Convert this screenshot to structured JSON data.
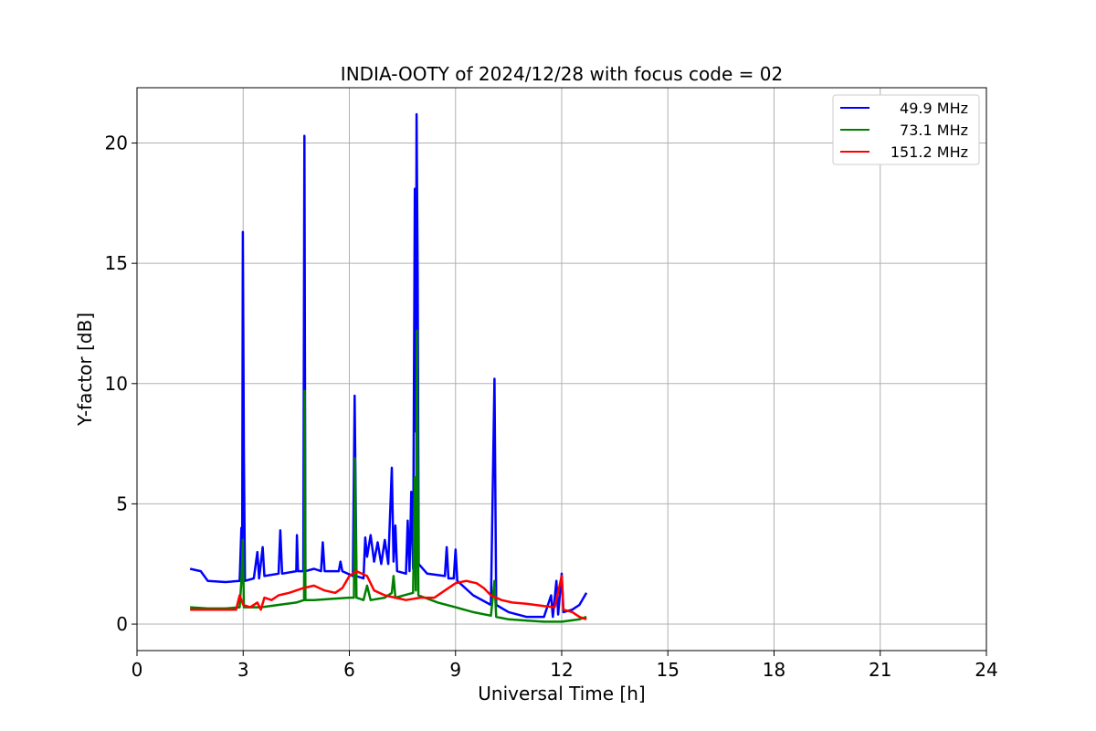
{
  "chart_data": {
    "type": "line",
    "title": "INDIA-OOTY of 2024/12/28 with focus code = 02",
    "xlabel": "Universal Time [h]",
    "ylabel": "Y-factor [dB]",
    "xlim": [
      0,
      24
    ],
    "ylim": [
      -1.1,
      22.3
    ],
    "xticks": [
      0,
      3,
      6,
      9,
      12,
      15,
      18,
      21,
      24
    ],
    "yticks": [
      0,
      5,
      10,
      15,
      20
    ],
    "grid": true,
    "legend": "top-right",
    "series": [
      {
        "name": "49.9 MHz",
        "color": "#0000ff",
        "points": [
          [
            1.5,
            2.3
          ],
          [
            1.8,
            2.2
          ],
          [
            2.0,
            1.8
          ],
          [
            2.5,
            1.75
          ],
          [
            2.9,
            1.8
          ],
          [
            2.95,
            4.0
          ],
          [
            2.97,
            1.9
          ],
          [
            2.99,
            16.3
          ],
          [
            3.02,
            7.2
          ],
          [
            3.05,
            1.8
          ],
          [
            3.3,
            1.9
          ],
          [
            3.4,
            3.0
          ],
          [
            3.45,
            1.9
          ],
          [
            3.55,
            3.2
          ],
          [
            3.6,
            2.0
          ],
          [
            4.0,
            2.1
          ],
          [
            4.05,
            3.9
          ],
          [
            4.1,
            2.1
          ],
          [
            4.5,
            2.2
          ],
          [
            4.52,
            3.7
          ],
          [
            4.55,
            2.2
          ],
          [
            4.7,
            2.2
          ],
          [
            4.73,
            20.3
          ],
          [
            4.76,
            2.2
          ],
          [
            5.0,
            2.3
          ],
          [
            5.2,
            2.2
          ],
          [
            5.25,
            3.4
          ],
          [
            5.3,
            2.2
          ],
          [
            5.7,
            2.2
          ],
          [
            5.75,
            2.6
          ],
          [
            5.8,
            2.2
          ],
          [
            6.1,
            2.0
          ],
          [
            6.15,
            9.5
          ],
          [
            6.2,
            2.0
          ],
          [
            6.4,
            1.9
          ],
          [
            6.45,
            3.6
          ],
          [
            6.5,
            2.8
          ],
          [
            6.6,
            3.7
          ],
          [
            6.7,
            2.6
          ],
          [
            6.8,
            3.4
          ],
          [
            6.9,
            2.5
          ],
          [
            7.0,
            3.5
          ],
          [
            7.1,
            2.5
          ],
          [
            7.2,
            6.5
          ],
          [
            7.25,
            2.6
          ],
          [
            7.3,
            4.1
          ],
          [
            7.35,
            2.2
          ],
          [
            7.6,
            2.1
          ],
          [
            7.65,
            4.3
          ],
          [
            7.7,
            2.2
          ],
          [
            7.75,
            5.5
          ],
          [
            7.8,
            2.3
          ],
          [
            7.85,
            18.1
          ],
          [
            7.88,
            8.0
          ],
          [
            7.9,
            21.2
          ],
          [
            7.93,
            14.5
          ],
          [
            7.96,
            2.5
          ],
          [
            8.2,
            2.1
          ],
          [
            8.7,
            2.0
          ],
          [
            8.75,
            3.2
          ],
          [
            8.8,
            1.9
          ],
          [
            8.95,
            1.9
          ],
          [
            9.0,
            3.1
          ],
          [
            9.05,
            1.8
          ],
          [
            9.5,
            1.2
          ],
          [
            10.0,
            0.8
          ],
          [
            10.1,
            10.2
          ],
          [
            10.15,
            0.8
          ],
          [
            10.5,
            0.5
          ],
          [
            11.0,
            0.3
          ],
          [
            11.5,
            0.3
          ],
          [
            11.7,
            1.2
          ],
          [
            11.75,
            0.3
          ],
          [
            11.85,
            1.8
          ],
          [
            11.9,
            0.4
          ],
          [
            12.0,
            2.1
          ],
          [
            12.05,
            0.5
          ],
          [
            12.3,
            0.6
          ],
          [
            12.5,
            0.8
          ],
          [
            12.7,
            1.3
          ]
        ]
      },
      {
        "name": "73.1 MHz",
        "color": "#008000",
        "points": [
          [
            1.5,
            0.7
          ],
          [
            2.0,
            0.65
          ],
          [
            2.5,
            0.65
          ],
          [
            2.9,
            0.7
          ],
          [
            2.95,
            1.8
          ],
          [
            2.99,
            3.5
          ],
          [
            3.02,
            0.7
          ],
          [
            3.5,
            0.7
          ],
          [
            4.0,
            0.8
          ],
          [
            4.5,
            0.9
          ],
          [
            4.72,
            1.0
          ],
          [
            4.74,
            9.7
          ],
          [
            4.76,
            1.0
          ],
          [
            5.0,
            1.0
          ],
          [
            5.5,
            1.05
          ],
          [
            6.0,
            1.1
          ],
          [
            6.13,
            1.1
          ],
          [
            6.16,
            6.9
          ],
          [
            6.2,
            1.1
          ],
          [
            6.4,
            1.0
          ],
          [
            6.5,
            1.6
          ],
          [
            6.6,
            1.0
          ],
          [
            7.0,
            1.1
          ],
          [
            7.2,
            1.3
          ],
          [
            7.25,
            2.0
          ],
          [
            7.3,
            1.1
          ],
          [
            7.8,
            1.3
          ],
          [
            7.85,
            6.1
          ],
          [
            7.88,
            1.4
          ],
          [
            7.91,
            12.2
          ],
          [
            7.95,
            1.2
          ],
          [
            8.5,
            0.9
          ],
          [
            9.0,
            0.7
          ],
          [
            9.5,
            0.5
          ],
          [
            10.0,
            0.35
          ],
          [
            10.1,
            1.8
          ],
          [
            10.15,
            0.3
          ],
          [
            10.5,
            0.2
          ],
          [
            11.0,
            0.15
          ],
          [
            11.5,
            0.1
          ],
          [
            12.0,
            0.1
          ],
          [
            12.5,
            0.2
          ],
          [
            12.7,
            0.3
          ]
        ]
      },
      {
        "name": "151.2 MHz",
        "color": "#ff0000",
        "points": [
          [
            1.5,
            0.6
          ],
          [
            2.0,
            0.6
          ],
          [
            2.5,
            0.6
          ],
          [
            2.8,
            0.6
          ],
          [
            2.9,
            1.2
          ],
          [
            3.0,
            0.8
          ],
          [
            3.2,
            0.7
          ],
          [
            3.4,
            0.9
          ],
          [
            3.5,
            0.6
          ],
          [
            3.6,
            1.1
          ],
          [
            3.8,
            1.0
          ],
          [
            4.0,
            1.2
          ],
          [
            4.3,
            1.3
          ],
          [
            4.7,
            1.5
          ],
          [
            5.0,
            1.6
          ],
          [
            5.3,
            1.4
          ],
          [
            5.6,
            1.3
          ],
          [
            5.8,
            1.5
          ],
          [
            6.0,
            2.0
          ],
          [
            6.2,
            2.2
          ],
          [
            6.5,
            2.0
          ],
          [
            6.7,
            1.4
          ],
          [
            7.0,
            1.2
          ],
          [
            7.3,
            1.1
          ],
          [
            7.6,
            1.0
          ],
          [
            8.0,
            1.1
          ],
          [
            8.4,
            1.1
          ],
          [
            8.7,
            1.4
          ],
          [
            9.0,
            1.7
          ],
          [
            9.3,
            1.8
          ],
          [
            9.6,
            1.7
          ],
          [
            9.8,
            1.5
          ],
          [
            10.0,
            1.2
          ],
          [
            10.3,
            1.0
          ],
          [
            10.6,
            0.9
          ],
          [
            11.0,
            0.85
          ],
          [
            11.5,
            0.75
          ],
          [
            11.8,
            0.7
          ],
          [
            12.0,
            2.0
          ],
          [
            12.05,
            0.6
          ],
          [
            12.3,
            0.5
          ],
          [
            12.5,
            0.3
          ],
          [
            12.7,
            0.2
          ]
        ]
      }
    ]
  }
}
